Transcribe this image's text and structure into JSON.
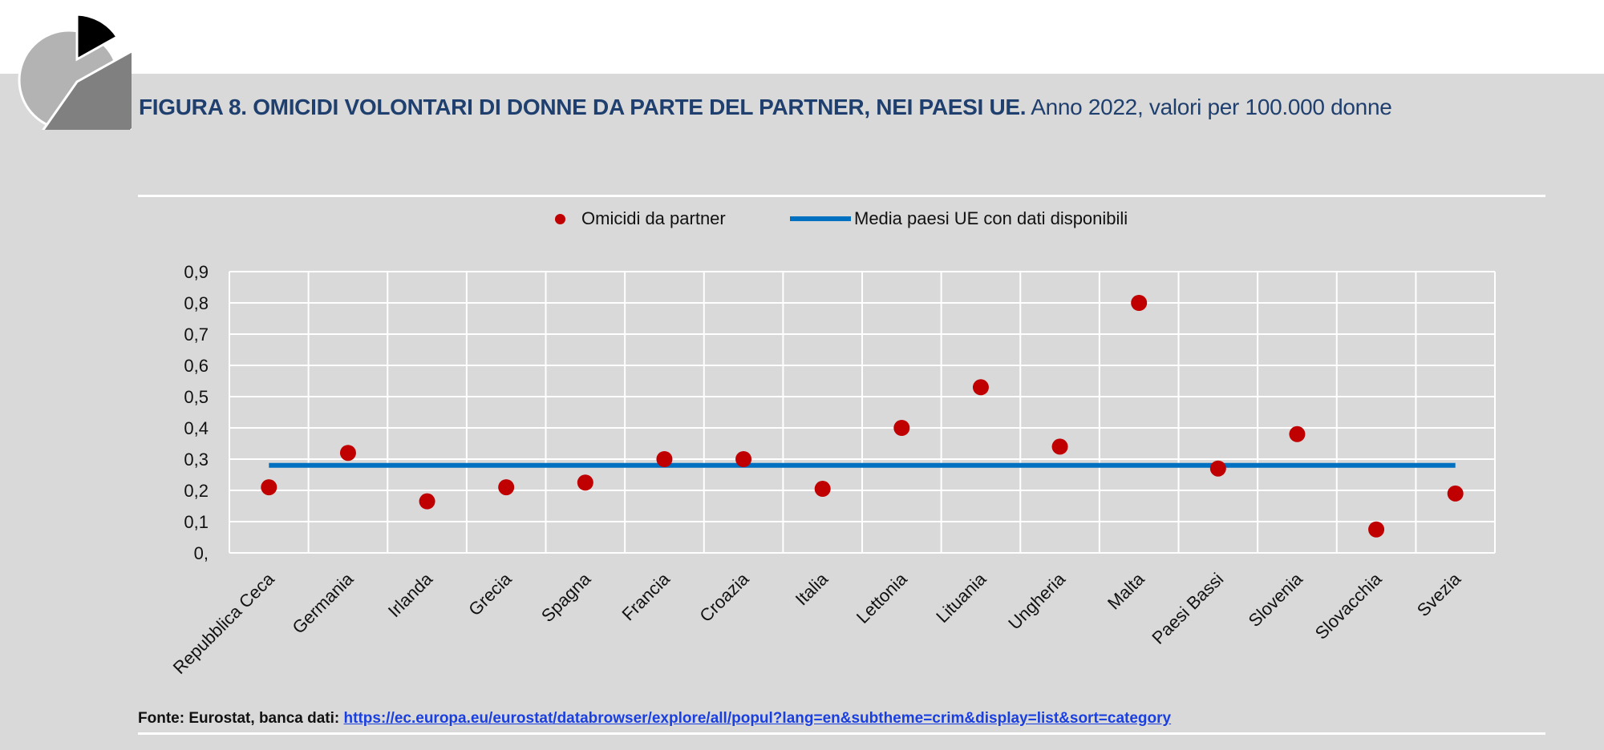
{
  "header": {
    "title_main": "FIGURA 8. OMICIDI VOLONTARI DI DONNE DA PARTE DEL PARTNER, NEI PAESI UE.",
    "title_sub": "Anno 2022, valori per 100.000 donne",
    "logo_icon": "pie-chart-logo-icon"
  },
  "colors": {
    "marker": "#c00000",
    "average_line": "#0070c0",
    "title": "#1f3f6e",
    "background": "#d9d9d9",
    "gridline": "#ffffff"
  },
  "chart_data": {
    "type": "scatter",
    "categories": [
      "Repubblica Ceca",
      "Germania",
      "Irlanda",
      "Grecia",
      "Spagna",
      "Francia",
      "Croazia",
      "Italia",
      "Lettonia",
      "Lituania",
      "Ungheria",
      "Malta",
      "Paesi Bassi",
      "Slovenia",
      "Slovacchia",
      "Svezia"
    ],
    "series": [
      {
        "name": "Omicidi da partner",
        "type": "scatter",
        "values": [
          0.21,
          0.32,
          0.165,
          0.21,
          0.225,
          0.3,
          0.3,
          0.205,
          0.4,
          0.53,
          0.34,
          0.8,
          0.27,
          0.38,
          0.075,
          0.19
        ]
      },
      {
        "name": "Media paesi UE con dati disponibili",
        "type": "line",
        "value": 0.28
      }
    ],
    "yticks": [
      "0,",
      "0,1",
      "0,2",
      "0,3",
      "0,4",
      "0,5",
      "0,6",
      "0,7",
      "0,8",
      "0,9"
    ],
    "ylim": [
      0,
      0.9
    ],
    "grid": true,
    "legend": "top-center"
  },
  "footer": {
    "source_label": "Fonte: Eurostat, banca dati:",
    "source_url": "https://ec.europa.eu/eurostat/databrowser/explore/all/popul?lang=en&subtheme=crim&display=list&sort=category"
  }
}
